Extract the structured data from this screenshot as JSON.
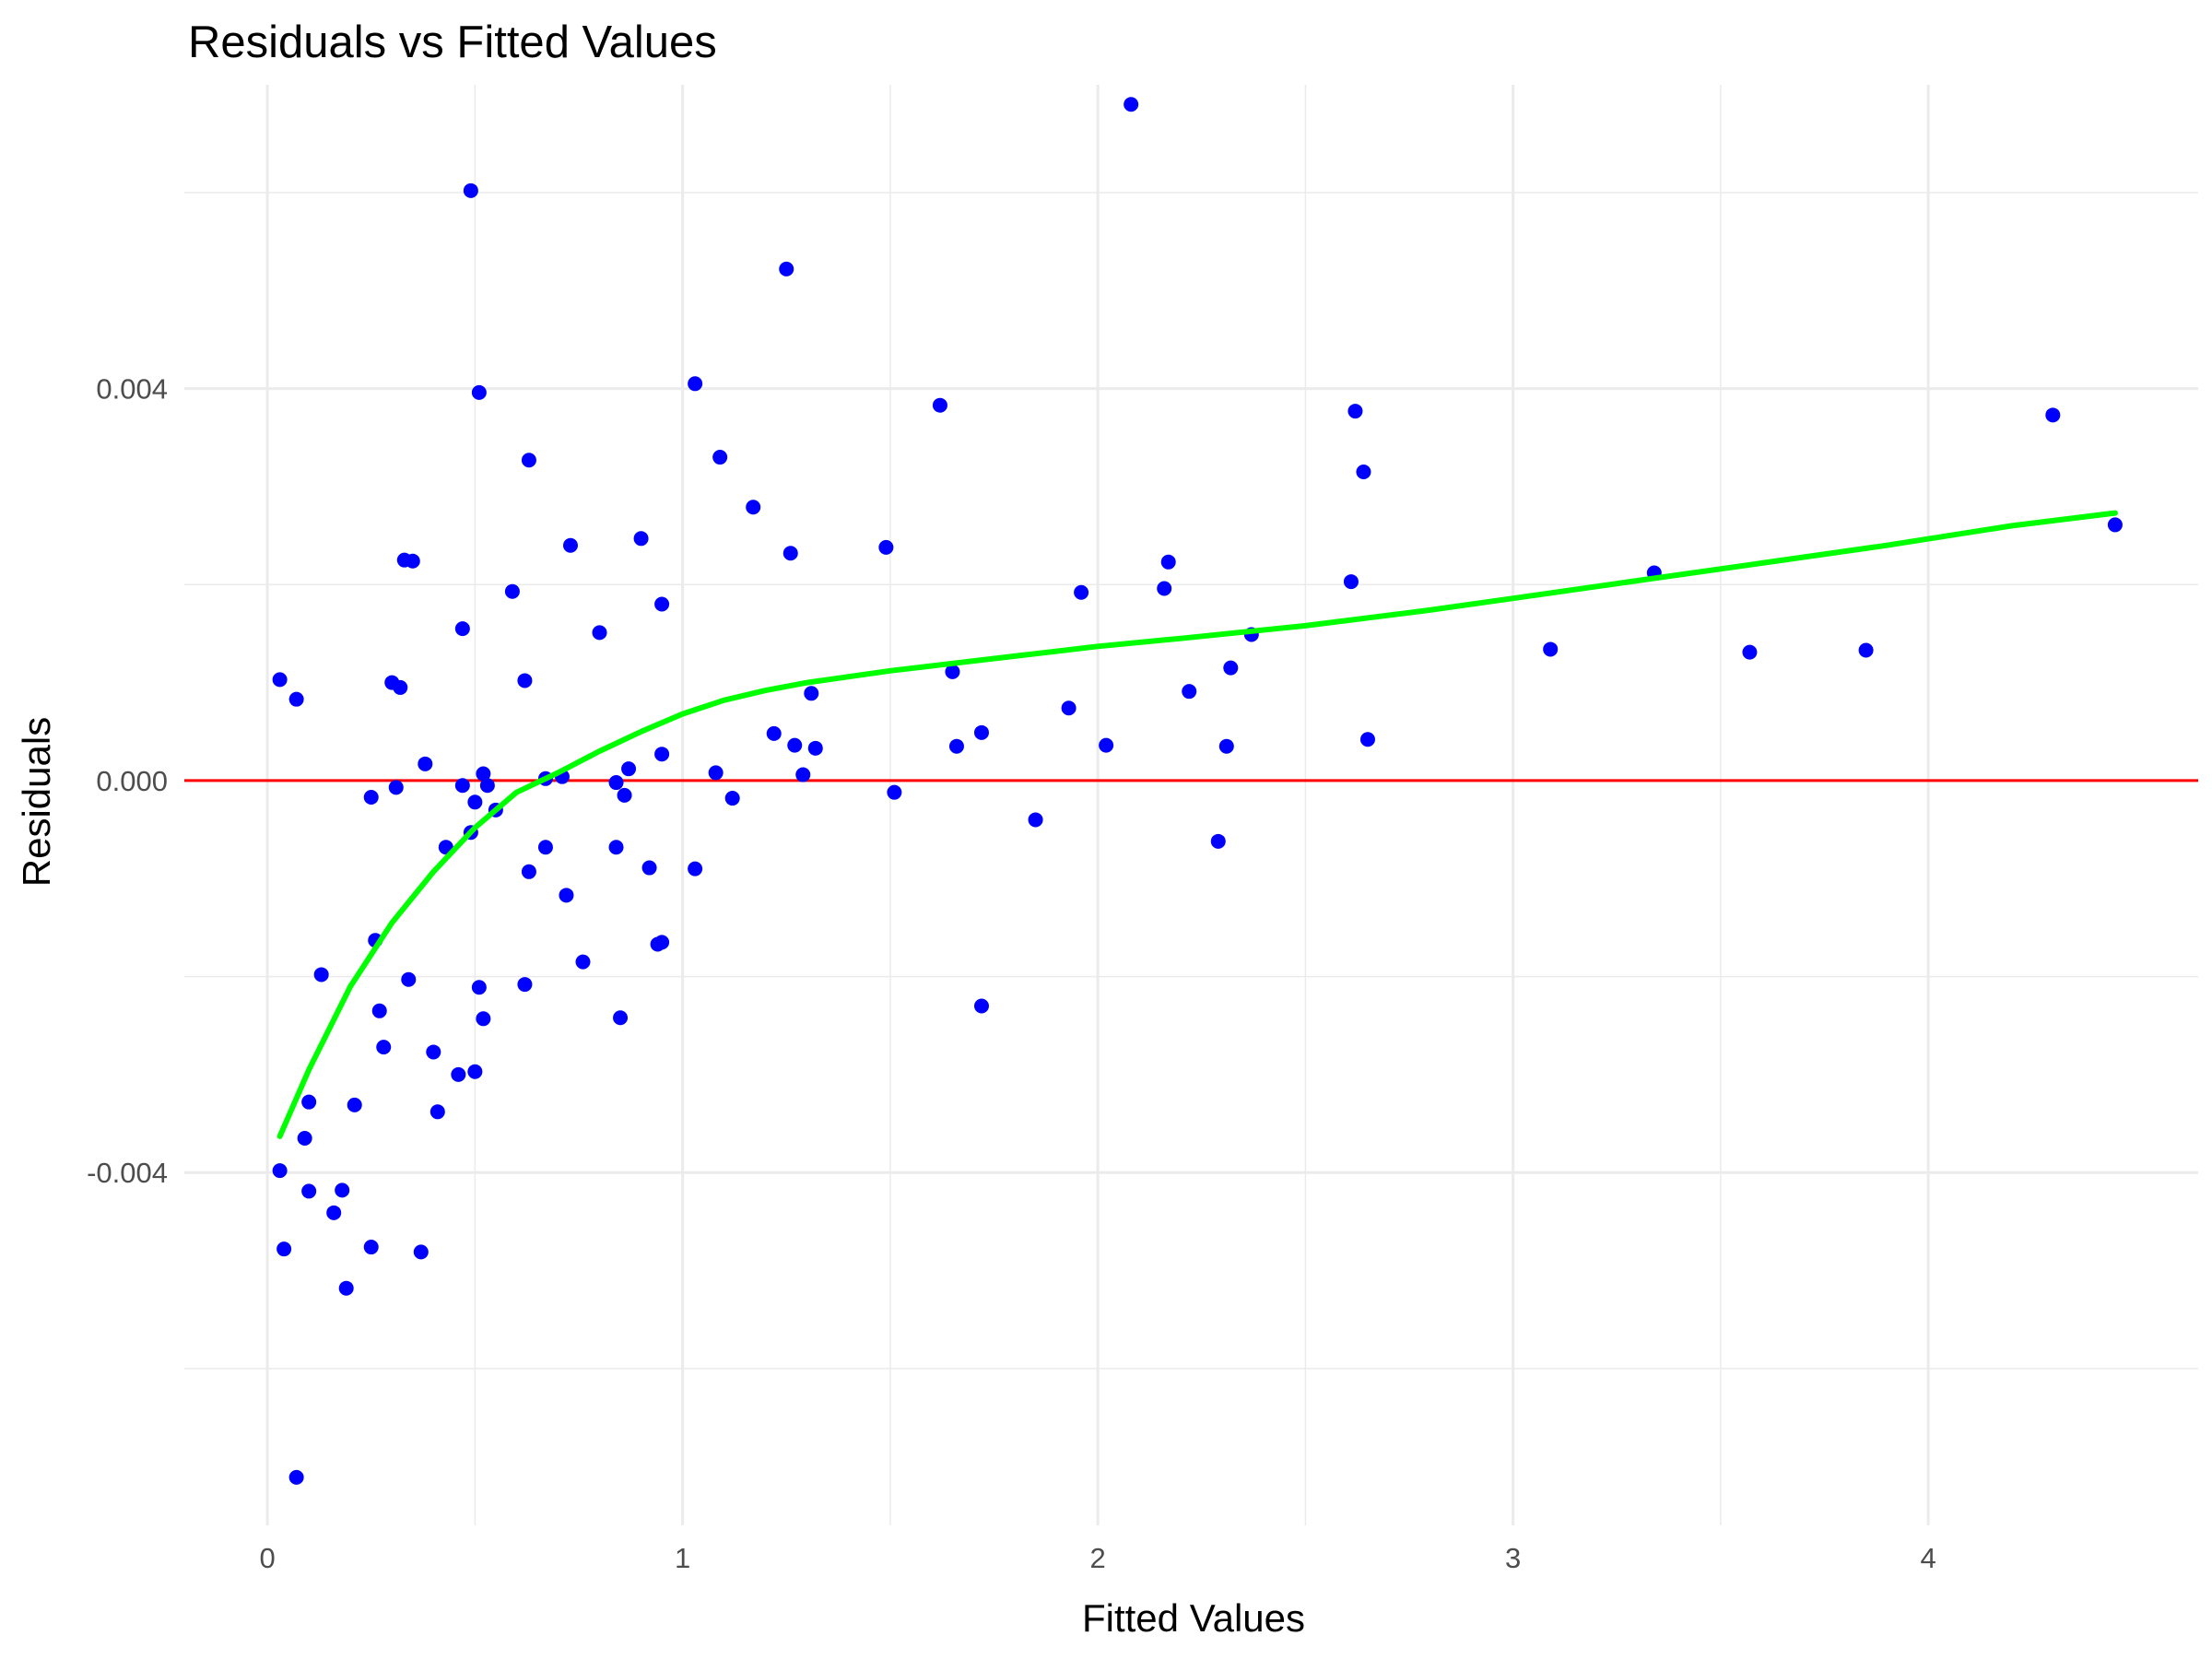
{
  "chart_data": {
    "type": "scatter",
    "title": "Residuals vs Fitted Values",
    "xlabel": "Fitted Values",
    "ylabel": "Residuals",
    "xlim": [
      -0.2,
      4.65
    ],
    "ylim": [
      -0.0076,
      0.0071
    ],
    "x_ticks": [
      0,
      1,
      2,
      3,
      4
    ],
    "x_tick_labels": [
      "0",
      "1",
      "2",
      "3",
      "4"
    ],
    "y_ticks": [
      -0.004,
      0.0,
      0.004
    ],
    "y_tick_labels": [
      "-0.004",
      "0.000",
      "0.004"
    ],
    "x_minor": [
      0.5,
      1.5,
      2.5,
      3.5
    ],
    "y_minor": [
      -0.006,
      -0.002,
      0.002,
      0.006
    ],
    "grid": true,
    "legend": "none",
    "colors": {
      "points": "#0000ff",
      "smooth": "#00ff00",
      "reference": "#ff0000",
      "grid": "#ebebeb"
    },
    "reference_line": {
      "y": 0.0
    },
    "series": [
      {
        "type": "scatter",
        "points": [
          [
            0.03,
            0.00103
          ],
          [
            0.07,
            0.00083
          ],
          [
            0.03,
            -0.00398
          ],
          [
            0.04,
            -0.00478
          ],
          [
            0.07,
            -0.00711
          ],
          [
            0.09,
            -0.00365
          ],
          [
            0.1,
            -0.00328
          ],
          [
            0.1,
            -0.00419
          ],
          [
            0.13,
            -0.00198
          ],
          [
            0.16,
            -0.00441
          ],
          [
            0.18,
            -0.00418
          ],
          [
            0.19,
            -0.00518
          ],
          [
            0.21,
            -0.00331
          ],
          [
            0.25,
            -0.00476
          ],
          [
            0.25,
            -0.00017
          ],
          [
            0.26,
            -0.00163
          ],
          [
            0.27,
            -0.00235
          ],
          [
            0.28,
            -0.00272
          ],
          [
            0.3,
            0.001
          ],
          [
            0.31,
            -7e-05
          ],
          [
            0.32,
            0.00095
          ],
          [
            0.33,
            0.00225
          ],
          [
            0.34,
            -0.00203
          ],
          [
            0.35,
            0.00224
          ],
          [
            0.37,
            -0.00481
          ],
          [
            0.38,
            0.00017
          ],
          [
            0.4,
            -0.00277
          ],
          [
            0.41,
            -0.00338
          ],
          [
            0.43,
            -0.00068
          ],
          [
            0.46,
            -0.003
          ],
          [
            0.47,
            -5e-05
          ],
          [
            0.47,
            0.00155
          ],
          [
            0.49,
            -0.00053
          ],
          [
            0.49,
            0.00602
          ],
          [
            0.5,
            -0.00297
          ],
          [
            0.5,
            -0.00022
          ],
          [
            0.51,
            0.00396
          ],
          [
            0.51,
            -0.00211
          ],
          [
            0.52,
            -0.00243
          ],
          [
            0.52,
            7e-05
          ],
          [
            0.53,
            -5e-05
          ],
          [
            0.55,
            -0.0003
          ],
          [
            0.59,
            0.00193
          ],
          [
            0.62,
            -0.00208
          ],
          [
            0.62,
            0.00102
          ],
          [
            0.63,
            0.00327
          ],
          [
            0.63,
            -0.00093
          ],
          [
            0.67,
            -0.00068
          ],
          [
            0.67,
            2e-05
          ],
          [
            0.71,
            4e-05
          ],
          [
            0.72,
            -0.00117
          ],
          [
            0.73,
            0.0024
          ],
          [
            0.76,
            -0.00185
          ],
          [
            0.8,
            0.00151
          ],
          [
            0.84,
            -2e-05
          ],
          [
            0.84,
            -0.00068
          ],
          [
            0.85,
            -0.00242
          ],
          [
            0.86,
            -0.00015
          ],
          [
            0.87,
            0.00012
          ],
          [
            0.9,
            0.00247
          ],
          [
            0.92,
            -0.00089
          ],
          [
            0.94,
            -0.00167
          ],
          [
            0.95,
            0.00027
          ],
          [
            0.95,
            0.0018
          ],
          [
            0.95,
            -0.00165
          ],
          [
            1.03,
            0.00405
          ],
          [
            1.03,
            -0.0009
          ],
          [
            1.08,
            8e-05
          ],
          [
            1.09,
            0.0033
          ],
          [
            1.12,
            -0.00018
          ],
          [
            1.17,
            0.00279
          ],
          [
            1.22,
            0.00048
          ],
          [
            1.25,
            0.00522
          ],
          [
            1.26,
            0.00232
          ],
          [
            1.27,
            0.00036
          ],
          [
            1.29,
            6e-05
          ],
          [
            1.31,
            0.00089
          ],
          [
            1.32,
            0.00033
          ],
          [
            1.49,
            0.00238
          ],
          [
            1.51,
            -0.00012
          ],
          [
            1.62,
            0.00383
          ],
          [
            1.65,
            0.00111
          ],
          [
            1.66,
            0.00035
          ],
          [
            1.72,
            0.00049
          ],
          [
            1.72,
            -0.0023
          ],
          [
            1.85,
            -0.0004
          ],
          [
            1.93,
            0.00074
          ],
          [
            1.96,
            0.00192
          ],
          [
            2.02,
            0.00036
          ],
          [
            2.08,
            0.0069
          ],
          [
            2.16,
            0.00196
          ],
          [
            2.17,
            0.00223
          ],
          [
            2.22,
            0.00091
          ],
          [
            2.29,
            -0.00062
          ],
          [
            2.31,
            0.00035
          ],
          [
            2.32,
            0.00115
          ],
          [
            2.37,
            0.00149
          ],
          [
            2.61,
            0.00203
          ],
          [
            2.62,
            0.00377
          ],
          [
            2.64,
            0.00315
          ],
          [
            2.65,
            0.00042
          ],
          [
            3.09,
            0.00134
          ],
          [
            3.34,
            0.00212
          ],
          [
            3.57,
            0.00131
          ],
          [
            3.85,
            0.00133
          ],
          [
            4.3,
            0.00373
          ],
          [
            4.45,
            0.00261
          ]
        ]
      },
      {
        "type": "line",
        "points": [
          [
            0.03,
            -0.00363
          ],
          [
            0.1,
            -0.00295
          ],
          [
            0.2,
            -0.0021
          ],
          [
            0.3,
            -0.00145
          ],
          [
            0.4,
            -0.00093
          ],
          [
            0.5,
            -0.00048
          ],
          [
            0.6,
            -0.00012
          ],
          [
            0.7,
            8e-05
          ],
          [
            0.8,
            0.0003
          ],
          [
            0.9,
            0.0005
          ],
          [
            1.0,
            0.00068
          ],
          [
            1.1,
            0.00082
          ],
          [
            1.2,
            0.00092
          ],
          [
            1.3,
            0.001
          ],
          [
            1.4,
            0.00106
          ],
          [
            1.5,
            0.00112
          ],
          [
            1.6,
            0.00117
          ],
          [
            1.8,
            0.00127
          ],
          [
            2.0,
            0.00137
          ],
          [
            2.2,
            0.00145
          ],
          [
            2.5,
            0.00158
          ],
          [
            2.8,
            0.00174
          ],
          [
            3.0,
            0.00186
          ],
          [
            3.3,
            0.00204
          ],
          [
            3.6,
            0.00222
          ],
          [
            3.9,
            0.0024
          ],
          [
            4.2,
            0.0026
          ],
          [
            4.45,
            0.00273
          ]
        ]
      }
    ]
  }
}
